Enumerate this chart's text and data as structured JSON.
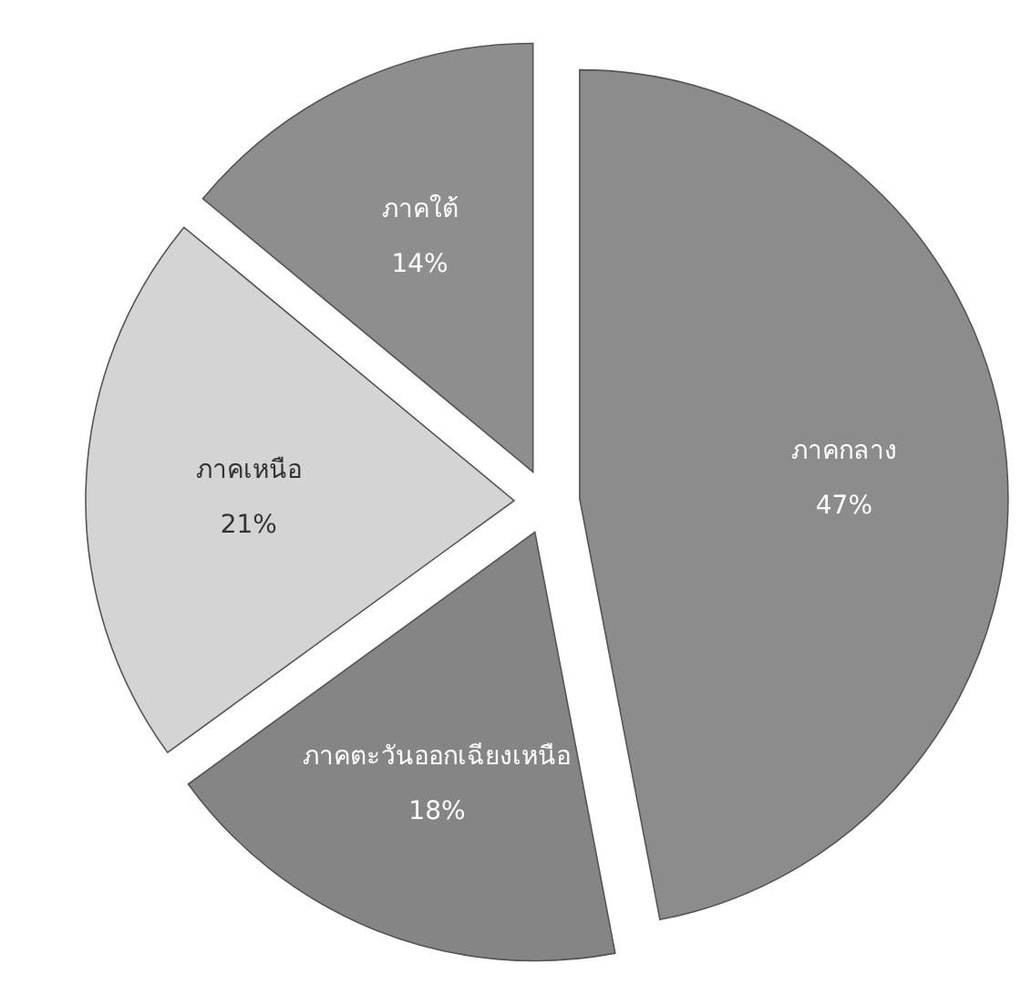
{
  "chart_data": {
    "type": "pie",
    "categories": [
      "ภาคกลาง",
      "ภาคตะวันออกเฉียงเหนือ",
      "ภาคเหนือ",
      "ภาคใต้"
    ],
    "values": [
      47,
      18,
      21,
      14
    ],
    "value_labels": [
      "47%",
      "18%",
      "21%",
      "14%"
    ],
    "colors": [
      "#8c8c8c",
      "#858585",
      "#d4d4d4",
      "#8e8e8e"
    ]
  }
}
